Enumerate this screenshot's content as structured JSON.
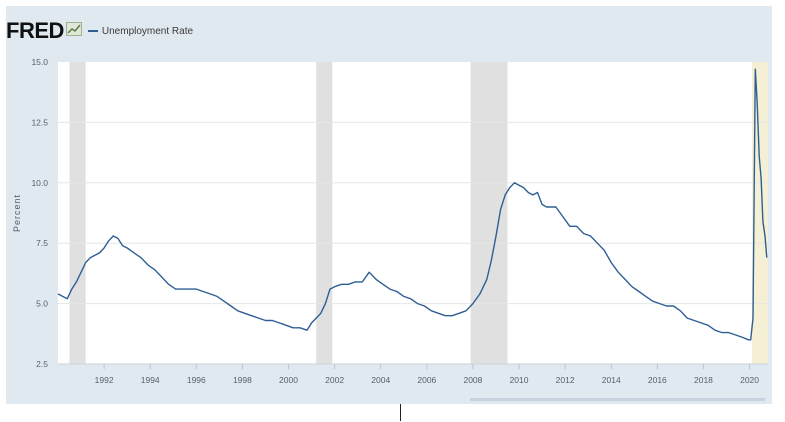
{
  "header": {
    "logo_text": "FRED",
    "logo_icon": "chart-line-icon",
    "legend_label": "Unemployment Rate"
  },
  "colors": {
    "series": "#2f5e94",
    "recession_shading": "#e0e0e0",
    "covid_highlight": "#f5f0d5",
    "panel_background": "#e1e9f0",
    "plot_background": "#ffffff",
    "gridline": "#e6e6e6"
  },
  "chart_data": {
    "type": "line",
    "title": "",
    "xlabel": "",
    "ylabel": "Percent",
    "xlim": [
      1990.0,
      2020.8
    ],
    "ylim": [
      2.5,
      15.0
    ],
    "x_ticks": [
      "1992",
      "1994",
      "1996",
      "1998",
      "2000",
      "2002",
      "2004",
      "2006",
      "2008",
      "2010",
      "2012",
      "2014",
      "2016",
      "2018",
      "2020"
    ],
    "y_ticks": [
      "2.5",
      "5.0",
      "7.5",
      "10.0",
      "12.5",
      "15.0"
    ],
    "grid": true,
    "legend_position": "top-left",
    "shaded_periods": [
      {
        "start": 1990.5,
        "end": 1991.2
      },
      {
        "start": 2001.2,
        "end": 2001.9
      },
      {
        "start": 2007.9,
        "end": 2009.5
      },
      {
        "start": 2020.1,
        "end": 2020.8,
        "style": "highlight"
      }
    ],
    "series": [
      {
        "name": "Unemployment Rate",
        "x": [
          1990.0,
          1990.2,
          1990.4,
          1990.6,
          1990.8,
          1991.0,
          1991.2,
          1991.4,
          1991.6,
          1991.8,
          1992.0,
          1992.2,
          1992.4,
          1992.6,
          1992.8,
          1993.0,
          1993.3,
          1993.6,
          1993.9,
          1994.2,
          1994.5,
          1994.8,
          1995.1,
          1995.4,
          1995.7,
          1996.0,
          1996.3,
          1996.6,
          1996.9,
          1997.2,
          1997.5,
          1997.8,
          1998.1,
          1998.4,
          1998.7,
          1999.0,
          1999.3,
          1999.6,
          1999.9,
          2000.2,
          2000.5,
          2000.8,
          2001.0,
          2001.2,
          2001.4,
          2001.6,
          2001.8,
          2002.0,
          2002.3,
          2002.6,
          2002.9,
          2003.2,
          2003.5,
          2003.8,
          2004.1,
          2004.4,
          2004.7,
          2005.0,
          2005.3,
          2005.6,
          2005.9,
          2006.2,
          2006.5,
          2006.8,
          2007.1,
          2007.4,
          2007.7,
          2008.0,
          2008.3,
          2008.6,
          2008.8,
          2009.0,
          2009.2,
          2009.4,
          2009.6,
          2009.8,
          2010.0,
          2010.2,
          2010.4,
          2010.6,
          2010.8,
          2011.0,
          2011.2,
          2011.4,
          2011.6,
          2011.9,
          2012.2,
          2012.5,
          2012.8,
          2013.1,
          2013.4,
          2013.7,
          2014.0,
          2014.3,
          2014.6,
          2014.9,
          2015.2,
          2015.5,
          2015.8,
          2016.1,
          2016.4,
          2016.7,
          2017.0,
          2017.3,
          2017.6,
          2017.9,
          2018.2,
          2018.5,
          2018.8,
          2019.1,
          2019.4,
          2019.7,
          2019.95,
          2020.05,
          2020.15,
          2020.25,
          2020.33,
          2020.42,
          2020.5,
          2020.58,
          2020.67,
          2020.75
        ],
        "values": [
          5.4,
          5.3,
          5.2,
          5.6,
          5.9,
          6.3,
          6.7,
          6.9,
          7.0,
          7.1,
          7.3,
          7.6,
          7.8,
          7.7,
          7.4,
          7.3,
          7.1,
          6.9,
          6.6,
          6.4,
          6.1,
          5.8,
          5.6,
          5.6,
          5.6,
          5.6,
          5.5,
          5.4,
          5.3,
          5.1,
          4.9,
          4.7,
          4.6,
          4.5,
          4.4,
          4.3,
          4.3,
          4.2,
          4.1,
          4.0,
          4.0,
          3.9,
          4.2,
          4.4,
          4.6,
          5.0,
          5.6,
          5.7,
          5.8,
          5.8,
          5.9,
          5.9,
          6.3,
          6.0,
          5.8,
          5.6,
          5.5,
          5.3,
          5.2,
          5.0,
          4.9,
          4.7,
          4.6,
          4.5,
          4.5,
          4.6,
          4.7,
          5.0,
          5.4,
          6.0,
          6.8,
          7.8,
          8.9,
          9.5,
          9.8,
          10.0,
          9.9,
          9.8,
          9.6,
          9.5,
          9.6,
          9.1,
          9.0,
          9.0,
          9.0,
          8.6,
          8.2,
          8.2,
          7.9,
          7.8,
          7.5,
          7.2,
          6.7,
          6.3,
          6.0,
          5.7,
          5.5,
          5.3,
          5.1,
          5.0,
          4.9,
          4.9,
          4.7,
          4.4,
          4.3,
          4.2,
          4.1,
          3.9,
          3.8,
          3.8,
          3.7,
          3.6,
          3.5,
          3.5,
          4.4,
          14.7,
          13.3,
          11.1,
          10.2,
          8.4,
          7.8,
          6.9
        ]
      }
    ]
  }
}
